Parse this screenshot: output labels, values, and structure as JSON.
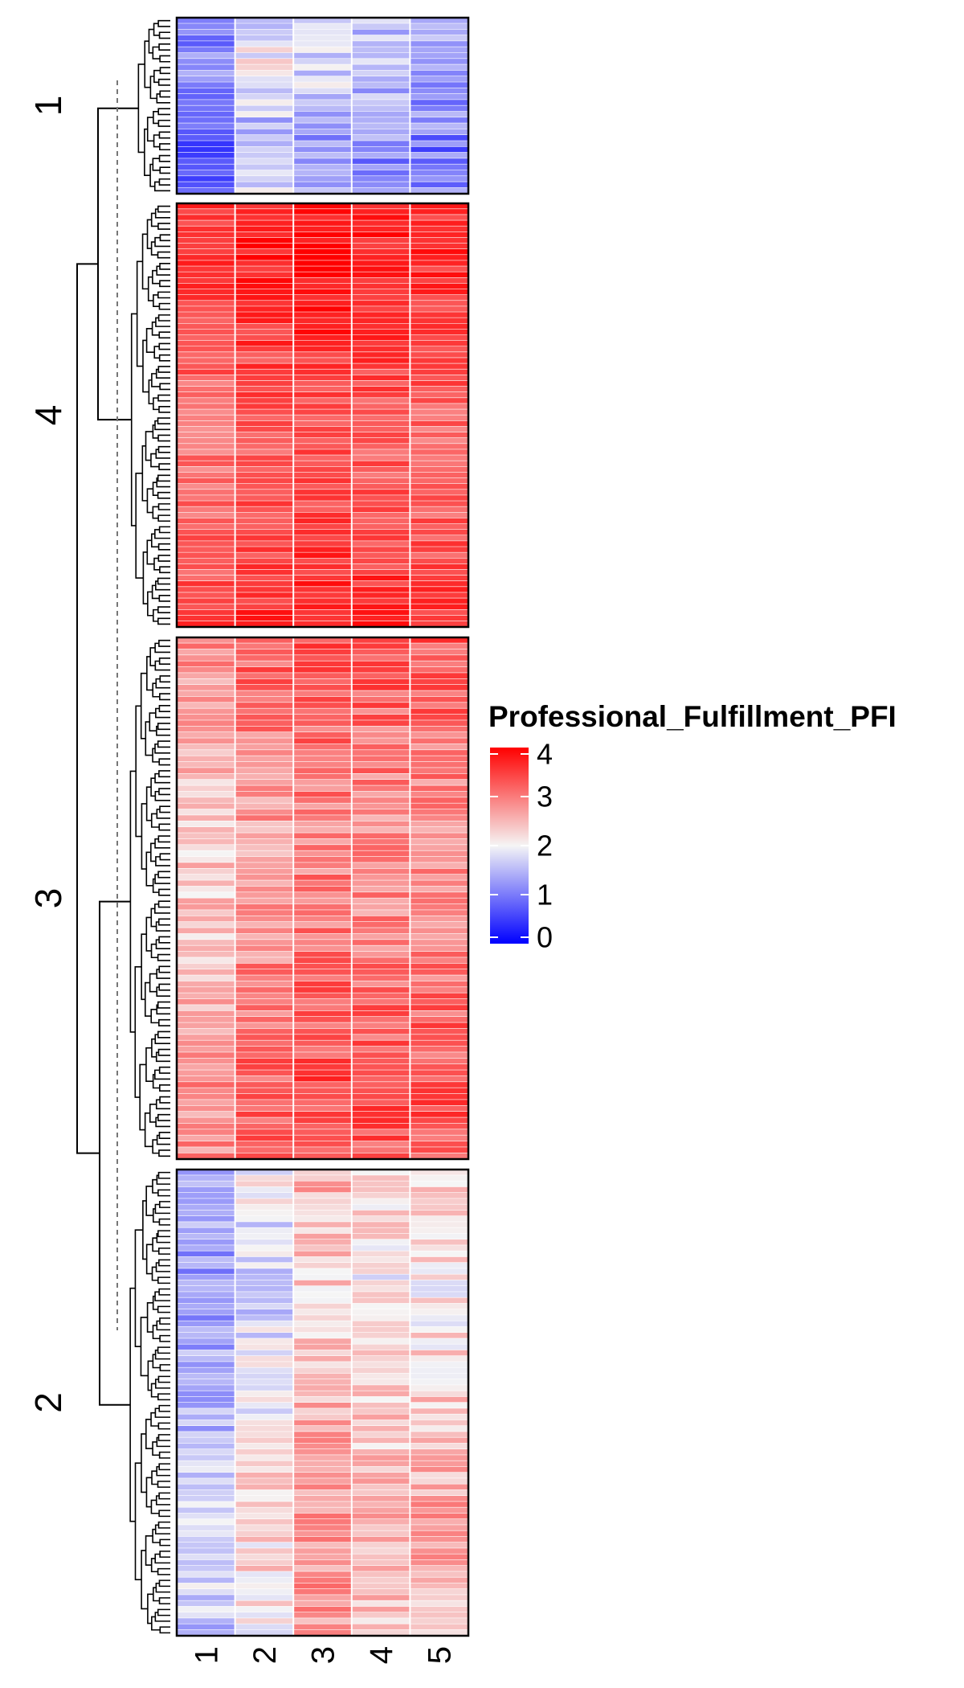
{
  "chart_data": {
    "type": "heatmap",
    "legend": {
      "title": "Professional_Fulfillment_PFI",
      "ticks": [
        4,
        3,
        2,
        1,
        0
      ],
      "range": [
        0,
        4
      ],
      "mid": 2,
      "placement": "right"
    },
    "colors": {
      "low": "#0000ff",
      "mid": "#f5f5f5",
      "high": "#ff0000"
    },
    "columns": [
      "1",
      "2",
      "3",
      "4",
      "5"
    ],
    "row_dendrogram": true,
    "row_clusters": [
      {
        "label": "1",
        "rows": 30,
        "profile": [
          0.9,
          1.7,
          1.5,
          1.4,
          1.2
        ],
        "noise": 0.45
      },
      {
        "label": "4",
        "rows": 74,
        "profile": [
          3.3,
          3.5,
          3.6,
          3.5,
          3.4
        ],
        "noise": 0.3
      },
      {
        "label": "3",
        "rows": 88,
        "profile": [
          2.6,
          3.0,
          3.2,
          3.1,
          3.1
        ],
        "noise": 0.4
      },
      {
        "label": "2",
        "rows": 80,
        "profile": [
          1.5,
          2.0,
          2.6,
          2.3,
          2.4
        ],
        "noise": 0.4
      }
    ]
  }
}
